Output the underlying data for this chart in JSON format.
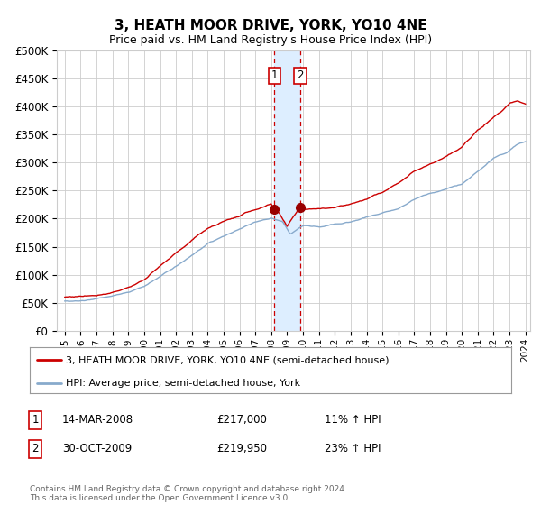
{
  "title": "3, HEATH MOOR DRIVE, YORK, YO10 4NE",
  "subtitle": "Price paid vs. HM Land Registry's House Price Index (HPI)",
  "legend_line1": "3, HEATH MOOR DRIVE, YORK, YO10 4NE (semi-detached house)",
  "legend_line2": "HPI: Average price, semi-detached house, York",
  "transaction1_date": "14-MAR-2008",
  "transaction1_price": "£217,000",
  "transaction1_hpi": "11% ↑ HPI",
  "transaction2_date": "30-OCT-2009",
  "transaction2_price": "£219,950",
  "transaction2_hpi": "23% ↑ HPI",
  "footer": "Contains HM Land Registry data © Crown copyright and database right 2024.\nThis data is licensed under the Open Government Licence v3.0.",
  "red_color": "#cc0000",
  "blue_color": "#88aacc",
  "marker_color": "#990000",
  "vline_color": "#cc0000",
  "vspan_color": "#ddeeff",
  "grid_color": "#cccccc",
  "background_color": "#ffffff",
  "ylim": [
    0,
    500000
  ],
  "yticks": [
    0,
    50000,
    100000,
    150000,
    200000,
    250000,
    300000,
    350000,
    400000,
    450000,
    500000
  ],
  "year_start": 1995,
  "year_end": 2024,
  "transaction1_year": 2008.2,
  "transaction2_year": 2009.83,
  "t1_price": 217000,
  "t2_price": 219950
}
